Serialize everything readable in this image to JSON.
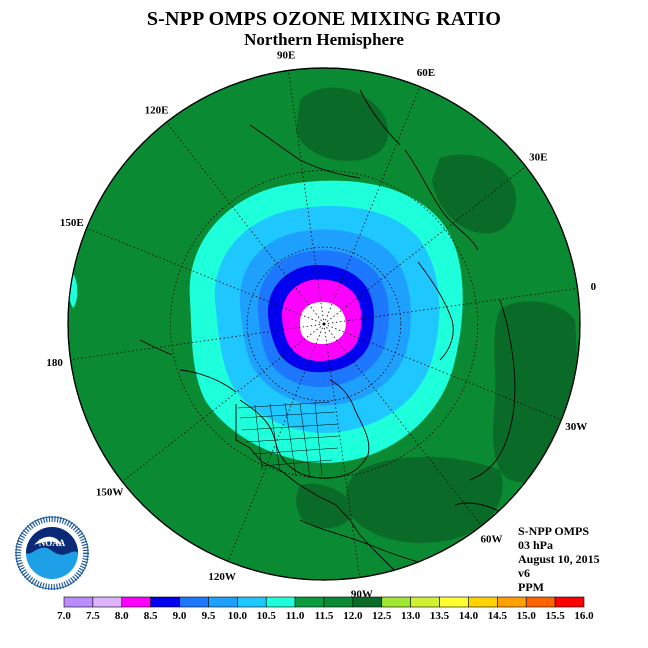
{
  "title": "S-NPP OMPS OZONE MIXING RATIO",
  "subtitle": "Northern Hemisphere",
  "longitude_labels": [
    {
      "text": "90E",
      "deg": 90
    },
    {
      "text": "60E",
      "deg": 60
    },
    {
      "text": "30E",
      "deg": 30
    },
    {
      "text": "0",
      "deg": 0
    },
    {
      "text": "30W",
      "deg": -30
    },
    {
      "text": "60W",
      "deg": -60
    },
    {
      "text": "90W",
      "deg": -90
    },
    {
      "text": "120W",
      "deg": -120
    },
    {
      "text": "150W",
      "deg": -150
    },
    {
      "text": "180",
      "deg": 180
    },
    {
      "text": "150E",
      "deg": 150
    },
    {
      "text": "120E",
      "deg": 120
    }
  ],
  "info": {
    "instrument": "S-NPP OMPS",
    "level": "03 hPa",
    "date": "August 10, 2015",
    "version": "v6",
    "units": "PPM"
  },
  "colorbar": {
    "labels": [
      "7.0",
      "7.5",
      "8.0",
      "8.5",
      "9.0",
      "9.5",
      "10.0",
      "10.5",
      "11.0",
      "11.5",
      "12.0",
      "12.5",
      "13.0",
      "13.5",
      "14.0",
      "14.5",
      "15.0",
      "15.5",
      "16.0"
    ],
    "colors": [
      "#b98cff",
      "#dcb4ff",
      "#ff00ff",
      "#0000ee",
      "#1e78ff",
      "#1ea0ff",
      "#1ec8ff",
      "#1effdc",
      "#0a9b3c",
      "#0a8a32",
      "#0a6a28",
      "#a0e632",
      "#d2f032",
      "#ffff32",
      "#ffd200",
      "#ffa000",
      "#ff6400",
      "#ff0000",
      "#8c4a32"
    ]
  },
  "field": {
    "background_color": "#0a8a32",
    "bands": [
      {
        "level": "10.5-11.0",
        "color": "#1effdc"
      },
      {
        "level": "10.0-10.5",
        "color": "#1ec8ff"
      },
      {
        "level": "9.5-10.0",
        "color": "#1ea0ff"
      },
      {
        "level": "9.0-9.5",
        "color": "#1e78ff"
      },
      {
        "level": "8.5-9.0",
        "color": "#0000ee"
      },
      {
        "level": "8.0-8.5",
        "color": "#ff00ff"
      },
      {
        "level": "<7.0",
        "color": "#ffffff"
      }
    ],
    "dark_patch_color": "#0a6a28"
  },
  "logo": {
    "text": "NOAA",
    "ring_text": "NATIONAL OCEANIC AND ATMOSPHERIC ADMINISTRATION · U.S. DEPARTMENT OF COMMERCE"
  }
}
